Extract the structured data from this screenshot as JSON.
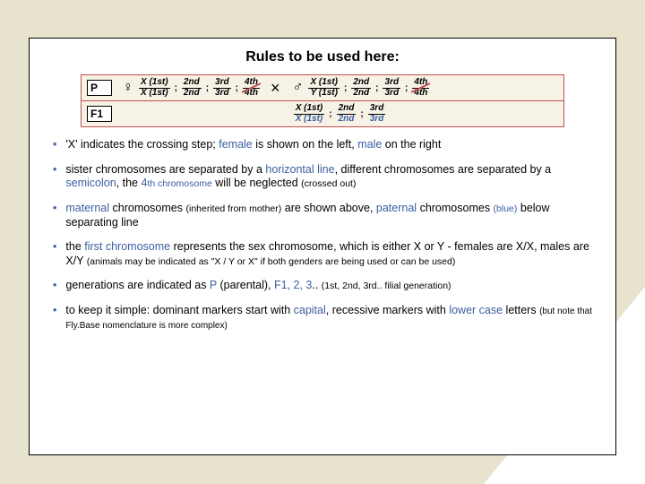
{
  "title": "Rules to be used here:",
  "diagram": {
    "p_label": "P",
    "f1_label": "F1",
    "female_top": "X (1st)",
    "female_bot": "X (1st)",
    "male_top": "X (1st)",
    "male_bot": "Y (1st)",
    "f1_top": "X (1st)",
    "f1_bot": "X (1st)",
    "c2t": "2nd",
    "c2b": "2nd",
    "c3t": "3rd",
    "c3b": "3rd",
    "c4t": "4th",
    "c4b": "4th",
    "female_sym": "♀",
    "male_sym": "♂",
    "cross": "×",
    "border_color": "#c0504d",
    "bg_color": "#f7f2e6"
  },
  "bullets": [
    {
      "parts": [
        {
          "t": "'X' indicates the crossing step; "
        },
        {
          "t": "female",
          "cls": "blue"
        },
        {
          "t": " is shown on the left, "
        },
        {
          "t": "male",
          "cls": "blue"
        },
        {
          "t": " on the right"
        }
      ]
    },
    {
      "parts": [
        {
          "t": "sister chromosomes are separated by a "
        },
        {
          "t": "horizontal line",
          "cls": "blue"
        },
        {
          "t": ", different chromosomes are separated by a "
        },
        {
          "t": "semicolon",
          "cls": "blue"
        },
        {
          "t": ", the "
        },
        {
          "t": "4",
          "cls": "blue"
        },
        {
          "t": "th chromosome",
          "cls": "blue small"
        },
        {
          "t": " will be neglected "
        },
        {
          "t": "(crossed out)",
          "cls": "small"
        }
      ]
    },
    {
      "parts": [
        {
          "t": "maternal",
          "cls": "blue"
        },
        {
          "t": " chromosomes "
        },
        {
          "t": "(inherited from mother)",
          "cls": "small"
        },
        {
          "t": " are shown above, "
        },
        {
          "t": "paternal",
          "cls": "blue"
        },
        {
          "t": " chromosomes "
        },
        {
          "t": "(blue)",
          "cls": "blue small"
        },
        {
          "t": " below separating line"
        }
      ]
    },
    {
      "parts": [
        {
          "t": "the "
        },
        {
          "t": "first chromosome",
          "cls": "blue"
        },
        {
          "t": " represents the sex chromosome, which is either X or Y - females are X/X, males are X/Y "
        },
        {
          "t": "(animals may be indicated as \"X / Y or X\" if both genders are being used or can be used)",
          "cls": "small"
        }
      ]
    },
    {
      "parts": [
        {
          "t": "generations are indicated as "
        },
        {
          "t": "P",
          "cls": "blue"
        },
        {
          "t": " (parental), "
        },
        {
          "t": "F1, 2, 3",
          "cls": "blue"
        },
        {
          "t": ".. "
        },
        {
          "t": "(1st, 2nd, 3rd.. filial generation)",
          "cls": "small"
        }
      ]
    },
    {
      "parts": [
        {
          "t": "to keep it simple: dominant markers start with "
        },
        {
          "t": "capital",
          "cls": "blue"
        },
        {
          "t": ", recessive markers with "
        },
        {
          "t": "lower case",
          "cls": "blue"
        },
        {
          "t": " letters "
        },
        {
          "t": "(but note that Fly.Base nomenclature is more complex)",
          "cls": "smaller"
        }
      ]
    }
  ],
  "colors": {
    "page_bg": "#e8e3cd",
    "accent": "#3a5fa0",
    "diagram_border": "#c0504d"
  }
}
